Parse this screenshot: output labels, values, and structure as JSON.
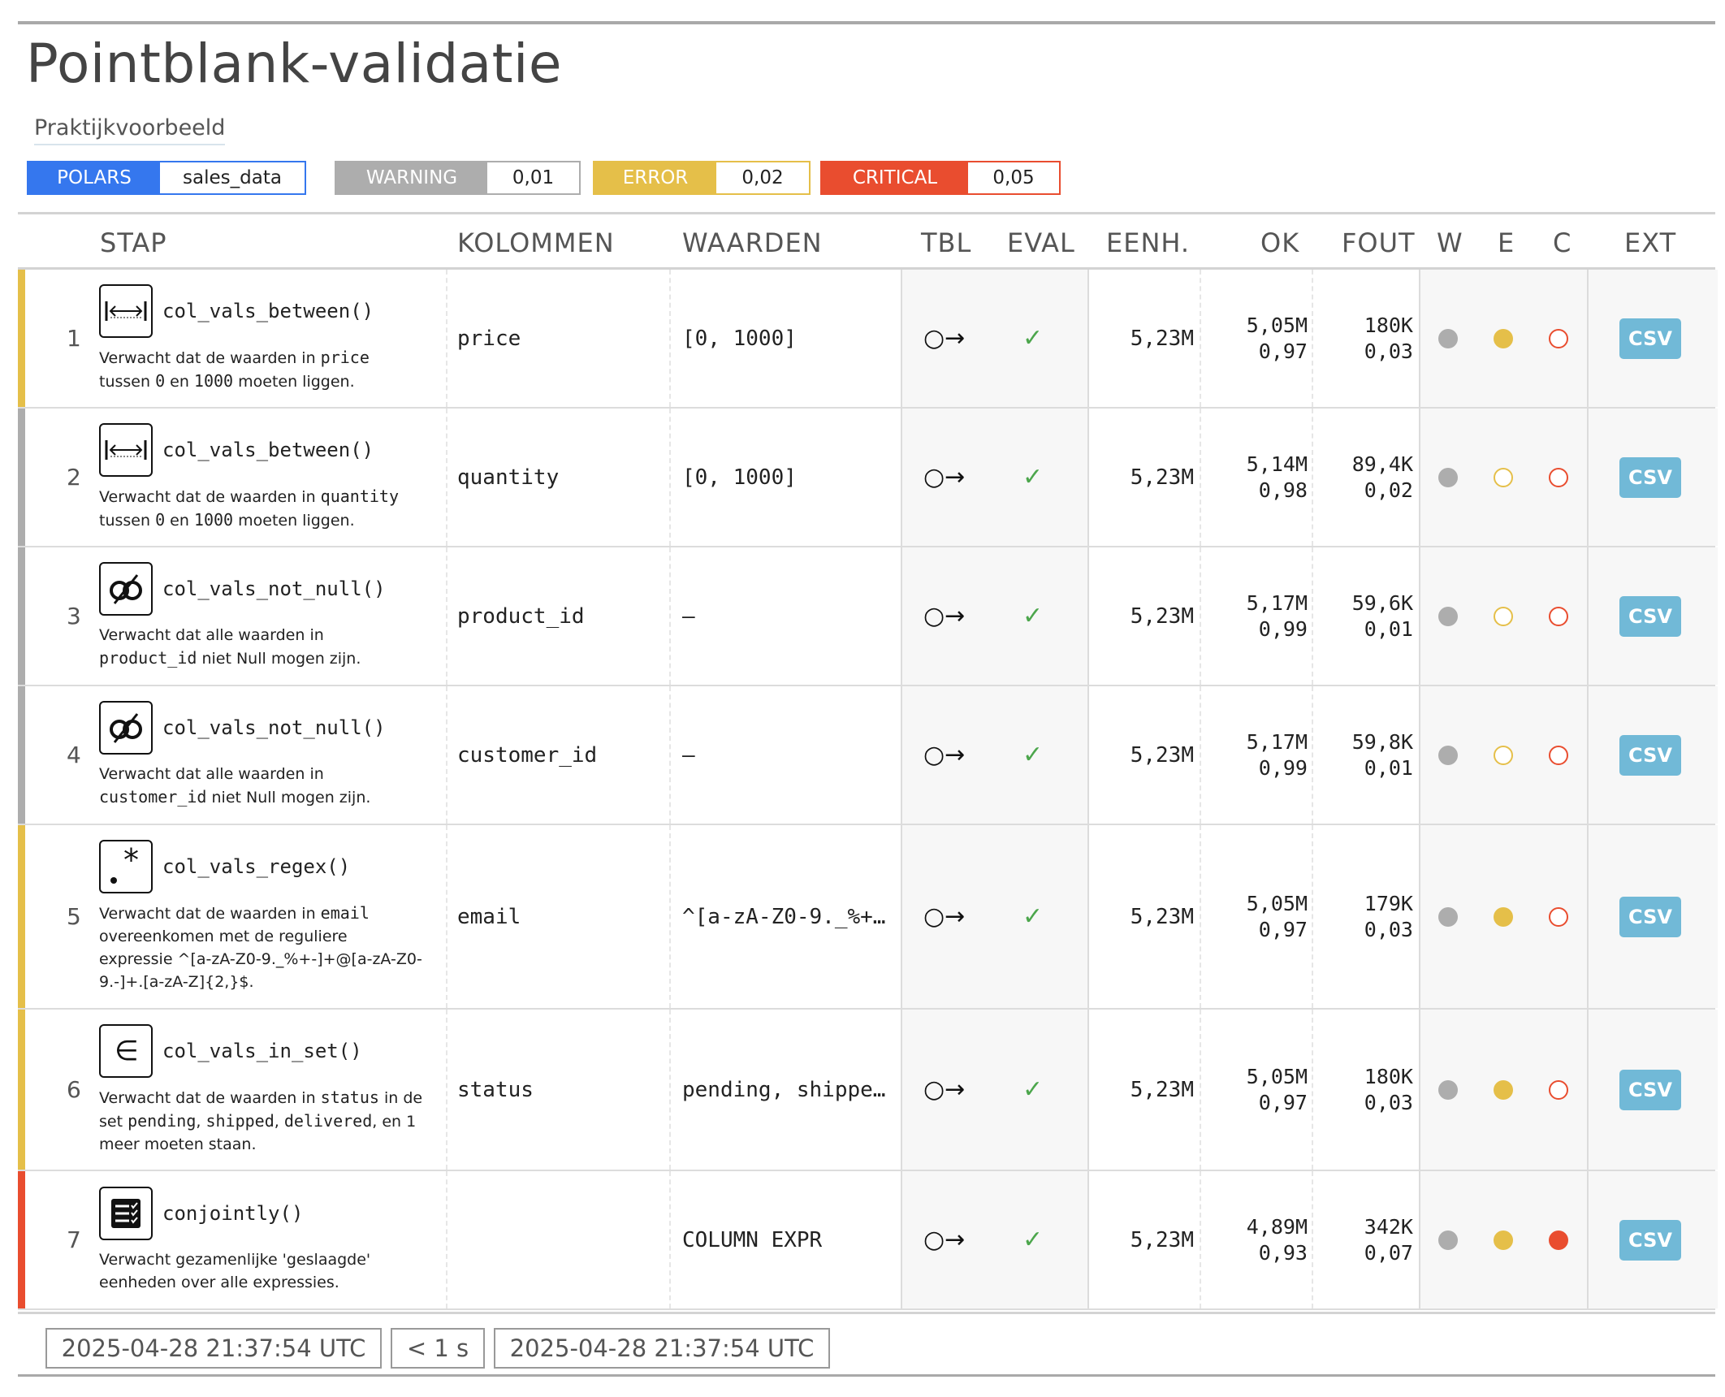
{
  "title": "Pointblank-validatie",
  "subtitle": "Praktijkvoorbeeld",
  "badges": {
    "engine": {
      "label": "POLARS",
      "value": "sales_data",
      "color": "#3577ee"
    },
    "warning": {
      "label": "WARNING",
      "value": "0,01",
      "color": "#adadad"
    },
    "error": {
      "label": "ERROR",
      "value": "0,02",
      "color": "#e5bf49"
    },
    "critical": {
      "label": "CRITICAL",
      "value": "0,05",
      "color": "#e94d2f"
    }
  },
  "columns": {
    "step": "STAP",
    "columns": "KOLOMMEN",
    "values": "WAARDEN",
    "tbl": "TBL",
    "eval": "EVAL",
    "units": "EENH.",
    "ok": "OK",
    "fail": "FOUT",
    "w": "W",
    "e": "E",
    "c": "C",
    "ext": "EXT"
  },
  "rows": [
    {
      "num": "1",
      "status_color": "#e5bf49",
      "icon": "between-icon",
      "fn": "col_vals_between()",
      "desc_parts": [
        "Verwacht dat de waarden in ",
        "price",
        " tussen ",
        "0",
        " en ",
        "1000",
        " moeten liggen."
      ],
      "column": "price",
      "values": "[0, 1000]",
      "tbl": "○→",
      "eval": "✓",
      "units": "5,23M",
      "ok_n": "5,05M",
      "ok_f": "0,97",
      "fail_n": "180K",
      "fail_f": "0,03",
      "w": "filled",
      "e": "filled",
      "c": "open",
      "ext": "CSV"
    },
    {
      "num": "2",
      "status_color": "#adadad",
      "icon": "between-icon",
      "fn": "col_vals_between()",
      "desc_parts": [
        "Verwacht dat de waarden in ",
        "quantity",
        " tussen ",
        "0",
        " en ",
        "1000",
        " moeten liggen."
      ],
      "column": "quantity",
      "values": "[0, 1000]",
      "tbl": "○→",
      "eval": "✓",
      "units": "5,23M",
      "ok_n": "5,14M",
      "ok_f": "0,98",
      "fail_n": "89,4K",
      "fail_f": "0,02",
      "w": "filled",
      "e": "open",
      "c": "open",
      "ext": "CSV"
    },
    {
      "num": "3",
      "status_color": "#adadad",
      "icon": "not-null-icon",
      "fn": "col_vals_not_null()",
      "desc_parts": [
        "Verwacht dat alle waarden in ",
        "product_id",
        " niet Null mogen zijn."
      ],
      "column": "product_id",
      "values": "—",
      "tbl": "○→",
      "eval": "✓",
      "units": "5,23M",
      "ok_n": "5,17M",
      "ok_f": "0,99",
      "fail_n": "59,6K",
      "fail_f": "0,01",
      "w": "filled",
      "e": "open",
      "c": "open",
      "ext": "CSV"
    },
    {
      "num": "4",
      "status_color": "#adadad",
      "icon": "not-null-icon",
      "fn": "col_vals_not_null()",
      "desc_parts": [
        "Verwacht dat alle waarden in ",
        "customer_id",
        " niet Null mogen zijn."
      ],
      "column": "customer_id",
      "values": "—",
      "tbl": "○→",
      "eval": "✓",
      "units": "5,23M",
      "ok_n": "5,17M",
      "ok_f": "0,99",
      "fail_n": "59,8K",
      "fail_f": "0,01",
      "w": "filled",
      "e": "open",
      "c": "open",
      "ext": "CSV"
    },
    {
      "num": "5",
      "status_color": "#e5bf49",
      "icon": "regex-icon",
      "fn": "col_vals_regex()",
      "desc_parts": [
        "Verwacht dat de waarden in ",
        "email",
        " overeenkomen met de reguliere expressie ^[a-zA-Z0-9._%+-]+@[a-zA-Z0-9.-]+.[a-zA-Z]{2,}$."
      ],
      "column": "email",
      "values": "^[a-zA-Z0-9._%+…",
      "tbl": "○→",
      "eval": "✓",
      "units": "5,23M",
      "ok_n": "5,05M",
      "ok_f": "0,97",
      "fail_n": "179K",
      "fail_f": "0,03",
      "w": "filled",
      "e": "filled",
      "c": "open",
      "ext": "CSV"
    },
    {
      "num": "6",
      "status_color": "#e5bf49",
      "icon": "in-set-icon",
      "fn": "col_vals_in_set()",
      "desc_parts": [
        "Verwacht dat de waarden in ",
        "status",
        " in de set ",
        "pending",
        ", ",
        "shipped",
        ", ",
        "delivered",
        ", en 1 meer moeten staan."
      ],
      "column": "status",
      "values": "pending, shippe…",
      "tbl": "○→",
      "eval": "✓",
      "units": "5,23M",
      "ok_n": "5,05M",
      "ok_f": "0,97",
      "fail_n": "180K",
      "fail_f": "0,03",
      "w": "filled",
      "e": "filled",
      "c": "open",
      "ext": "CSV"
    },
    {
      "num": "7",
      "status_color": "#e94d2f",
      "icon": "conjointly-icon",
      "fn": "conjointly()",
      "desc_parts": [
        "Verwacht gezamenlijke 'geslaagde' eenheden over alle expressies."
      ],
      "column": "",
      "values": "COLUMN EXPR",
      "tbl": "○→",
      "eval": "✓",
      "units": "5,23M",
      "ok_n": "4,89M",
      "ok_f": "0,93",
      "fail_n": "342K",
      "fail_f": "0,07",
      "w": "filled",
      "e": "filled",
      "c": "filled",
      "ext": "CSV"
    }
  ],
  "dot_colors": {
    "w": "#adadad",
    "e": "#e5bf49",
    "c": "#e94d2f"
  },
  "footer": {
    "start": "2025-04-28 21:37:54 UTC",
    "duration": "< 1 s",
    "end": "2025-04-28 21:37:54 UTC"
  }
}
